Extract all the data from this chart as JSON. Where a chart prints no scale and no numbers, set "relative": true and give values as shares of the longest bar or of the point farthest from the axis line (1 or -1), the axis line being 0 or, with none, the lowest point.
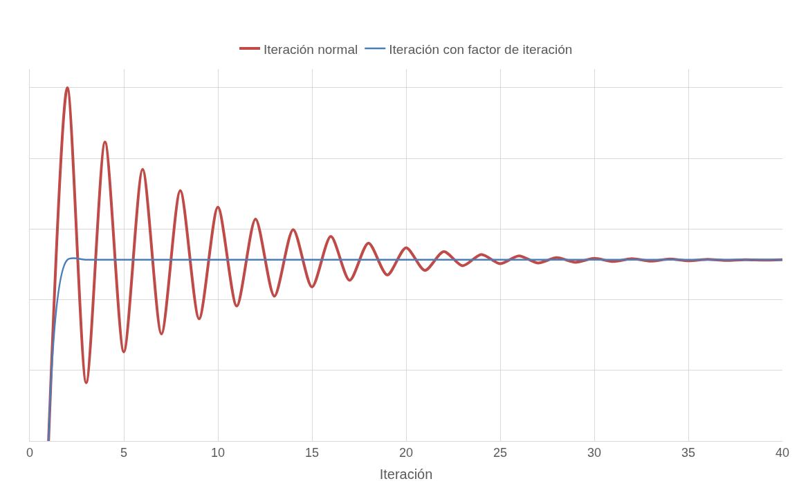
{
  "chart_data": {
    "type": "line",
    "relative": true,
    "xlabel": "Iteración",
    "xlim": [
      0,
      40
    ],
    "xticks": [
      0,
      5,
      10,
      15,
      20,
      25,
      30,
      35,
      40
    ],
    "x": [
      1,
      2,
      3,
      4,
      5,
      6,
      7,
      8,
      9,
      10,
      11,
      12,
      13,
      14,
      15,
      16,
      17,
      18,
      19,
      20,
      21,
      22,
      23,
      24,
      25,
      26,
      27,
      28,
      29,
      30,
      31,
      32,
      33,
      34,
      35,
      36,
      37,
      38,
      39,
      40
    ],
    "series": [
      {
        "name": "Iteración normal",
        "color": "#be4b48",
        "values": [
          0,
          1.0,
          0.165,
          0.846,
          0.252,
          0.769,
          0.303,
          0.709,
          0.346,
          0.662,
          0.382,
          0.628,
          0.41,
          0.598,
          0.436,
          0.579,
          0.455,
          0.56,
          0.47,
          0.547,
          0.483,
          0.536,
          0.496,
          0.528,
          0.502,
          0.524,
          0.504,
          0.519,
          0.506,
          0.517,
          0.508,
          0.516,
          0.509,
          0.515,
          0.51,
          0.514,
          0.511,
          0.513,
          0.512,
          0.513
        ]
      },
      {
        "name": "Iteración con factor de iteración",
        "color": "#4a7ebb",
        "values": [
          0,
          0.513,
          0.513,
          0.513,
          0.513,
          0.513,
          0.513,
          0.513,
          0.513,
          0.513,
          0.513,
          0.513,
          0.513,
          0.513,
          0.513,
          0.513,
          0.513,
          0.513,
          0.513,
          0.513,
          0.513,
          0.513,
          0.513,
          0.513,
          0.513,
          0.513,
          0.513,
          0.513,
          0.513,
          0.513,
          0.513,
          0.513,
          0.513,
          0.513,
          0.513,
          0.513,
          0.513,
          0.513,
          0.513,
          0.513
        ]
      }
    ],
    "grid": true,
    "legend": "top",
    "marker": "none",
    "line_style": "solid"
  }
}
